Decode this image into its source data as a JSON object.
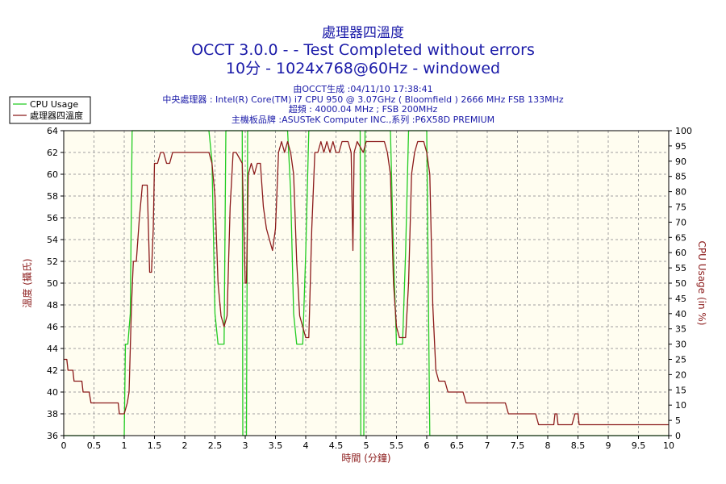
{
  "chart_data": {
    "type": "line",
    "title": "處理器四溫度",
    "subtitle1": "OCCT 3.0.0 -  - Test Completed without errors",
    "subtitle2": "10分 - 1024x768@60Hz - windowed",
    "info": [
      "由OCCT生成 :04/11/10 17:38:41",
      "中央處理器 : Intel(R) Core(TM) i7 CPU 950 @ 3.07GHz ( Bloomfield ) 2666 MHz FSB 133MHz",
      "超頻 : 4000.04 MHz ; FSB 200MHz",
      "主機板品牌 :ASUSTeK Computer INC.,系列 :P6X58D PREMIUM"
    ],
    "xlabel": "時間 (分鐘)",
    "ylabel_left": "溫度 (攝氏)",
    "ylabel_right": "CPU Usage (in %)",
    "xlim": [
      0,
      10
    ],
    "ylim_left": [
      36,
      64
    ],
    "ylim_right": [
      0,
      100
    ],
    "x_ticks": [
      "0",
      "0.5",
      "1",
      "1.5",
      "2",
      "2.5",
      "3",
      "3.5",
      "4",
      "4.5",
      "5",
      "5.5",
      "6",
      "6.5",
      "7",
      "7.5",
      "8",
      "8.5",
      "9",
      "9.5",
      "10"
    ],
    "y_left_ticks": [
      "36",
      "38",
      "40",
      "42",
      "44",
      "46",
      "48",
      "50",
      "52",
      "54",
      "56",
      "58",
      "60",
      "62",
      "64"
    ],
    "y_right_ticks": [
      "0",
      "5",
      "10",
      "15",
      "20",
      "25",
      "30",
      "35",
      "40",
      "45",
      "50",
      "55",
      "60",
      "65",
      "70",
      "75",
      "80",
      "85",
      "90",
      "95",
      "100"
    ],
    "grid": true,
    "legend_position": "top-left",
    "colors": {
      "plot_bg": "#fffdf0",
      "grid": "#a0a0a0",
      "cpu": "#22cc22",
      "temp": "#8b1a1a"
    },
    "series": [
      {
        "name": "CPU Usage",
        "axis": "right",
        "points": [
          [
            0,
            0
          ],
          [
            1,
            0
          ],
          [
            1.02,
            30
          ],
          [
            1.06,
            30
          ],
          [
            1.1,
            40
          ],
          [
            1.13,
            100
          ],
          [
            1.15,
            100
          ],
          [
            2.4,
            100
          ],
          [
            2.45,
            90
          ],
          [
            2.5,
            40
          ],
          [
            2.55,
            30
          ],
          [
            2.65,
            30
          ],
          [
            2.68,
            100
          ],
          [
            2.7,
            100
          ],
          [
            2.95,
            100
          ],
          [
            2.96,
            0
          ],
          [
            3.02,
            0
          ],
          [
            3.04,
            100
          ],
          [
            3.06,
            100
          ],
          [
            3.7,
            100
          ],
          [
            3.75,
            80
          ],
          [
            3.8,
            40
          ],
          [
            3.85,
            30
          ],
          [
            3.95,
            30
          ],
          [
            4.0,
            60
          ],
          [
            4.05,
            100
          ],
          [
            4.1,
            100
          ],
          [
            4.9,
            100
          ],
          [
            4.91,
            0
          ],
          [
            4.96,
            0
          ],
          [
            4.98,
            100
          ],
          [
            5.0,
            100
          ],
          [
            5.4,
            100
          ],
          [
            5.45,
            60
          ],
          [
            5.5,
            30
          ],
          [
            5.6,
            30
          ],
          [
            5.65,
            60
          ],
          [
            5.7,
            100
          ],
          [
            5.75,
            100
          ],
          [
            6.0,
            100
          ],
          [
            6.02,
            60
          ],
          [
            6.05,
            0
          ],
          [
            10,
            0
          ]
        ]
      },
      {
        "name": "處理器四溫度",
        "axis": "left",
        "points": [
          [
            0,
            43
          ],
          [
            0.05,
            43
          ],
          [
            0.07,
            42
          ],
          [
            0.15,
            42
          ],
          [
            0.17,
            41
          ],
          [
            0.3,
            41
          ],
          [
            0.32,
            40
          ],
          [
            0.42,
            40
          ],
          [
            0.45,
            39
          ],
          [
            0.9,
            39
          ],
          [
            0.92,
            38
          ],
          [
            1.0,
            38
          ],
          [
            1.05,
            39
          ],
          [
            1.08,
            40
          ],
          [
            1.1,
            44
          ],
          [
            1.12,
            48
          ],
          [
            1.15,
            52
          ],
          [
            1.2,
            52
          ],
          [
            1.25,
            56
          ],
          [
            1.3,
            59
          ],
          [
            1.38,
            59
          ],
          [
            1.4,
            55
          ],
          [
            1.42,
            51
          ],
          [
            1.45,
            51
          ],
          [
            1.48,
            55
          ],
          [
            1.5,
            61
          ],
          [
            1.55,
            61
          ],
          [
            1.6,
            62
          ],
          [
            1.65,
            62
          ],
          [
            1.7,
            61
          ],
          [
            1.75,
            61
          ],
          [
            1.8,
            62
          ],
          [
            2.4,
            62
          ],
          [
            2.45,
            61
          ],
          [
            2.5,
            58
          ],
          [
            2.55,
            50
          ],
          [
            2.6,
            47
          ],
          [
            2.65,
            46
          ],
          [
            2.7,
            47
          ],
          [
            2.75,
            57
          ],
          [
            2.8,
            62
          ],
          [
            2.85,
            62
          ],
          [
            2.95,
            61
          ],
          [
            3.0,
            50
          ],
          [
            3.02,
            50
          ],
          [
            3.05,
            60
          ],
          [
            3.1,
            61
          ],
          [
            3.15,
            60
          ],
          [
            3.2,
            61
          ],
          [
            3.25,
            61
          ],
          [
            3.3,
            57
          ],
          [
            3.35,
            55
          ],
          [
            3.4,
            54
          ],
          [
            3.45,
            53
          ],
          [
            3.5,
            55
          ],
          [
            3.55,
            62
          ],
          [
            3.6,
            63
          ],
          [
            3.65,
            62
          ],
          [
            3.7,
            63
          ],
          [
            3.75,
            62
          ],
          [
            3.8,
            60
          ],
          [
            3.85,
            52
          ],
          [
            3.9,
            47
          ],
          [
            3.95,
            46
          ],
          [
            4.0,
            45
          ],
          [
            4.05,
            45
          ],
          [
            4.1,
            55
          ],
          [
            4.15,
            62
          ],
          [
            4.2,
            62
          ],
          [
            4.25,
            63
          ],
          [
            4.3,
            62
          ],
          [
            4.35,
            63
          ],
          [
            4.4,
            62
          ],
          [
            4.45,
            63
          ],
          [
            4.5,
            62
          ],
          [
            4.55,
            62
          ],
          [
            4.6,
            63
          ],
          [
            4.7,
            63
          ],
          [
            4.75,
            62
          ],
          [
            4.78,
            53
          ],
          [
            4.8,
            62
          ],
          [
            4.85,
            63
          ],
          [
            4.95,
            62
          ],
          [
            5.0,
            63
          ],
          [
            5.3,
            63
          ],
          [
            5.35,
            62
          ],
          [
            5.4,
            60
          ],
          [
            5.45,
            50
          ],
          [
            5.5,
            46
          ],
          [
            5.55,
            45
          ],
          [
            5.65,
            45
          ],
          [
            5.7,
            50
          ],
          [
            5.75,
            60
          ],
          [
            5.8,
            62
          ],
          [
            5.85,
            63
          ],
          [
            5.95,
            63
          ],
          [
            6.0,
            62
          ],
          [
            6.05,
            60
          ],
          [
            6.1,
            48
          ],
          [
            6.15,
            42
          ],
          [
            6.2,
            41
          ],
          [
            6.3,
            41
          ],
          [
            6.35,
            40
          ],
          [
            6.6,
            40
          ],
          [
            6.65,
            39
          ],
          [
            7.3,
            39
          ],
          [
            7.35,
            38
          ],
          [
            7.8,
            38
          ],
          [
            7.85,
            37
          ],
          [
            8.1,
            37
          ],
          [
            8.12,
            38
          ],
          [
            8.15,
            38
          ],
          [
            8.17,
            37
          ],
          [
            8.4,
            37
          ],
          [
            8.45,
            38
          ],
          [
            8.5,
            38
          ],
          [
            8.52,
            37
          ],
          [
            10,
            37
          ]
        ]
      }
    ]
  }
}
